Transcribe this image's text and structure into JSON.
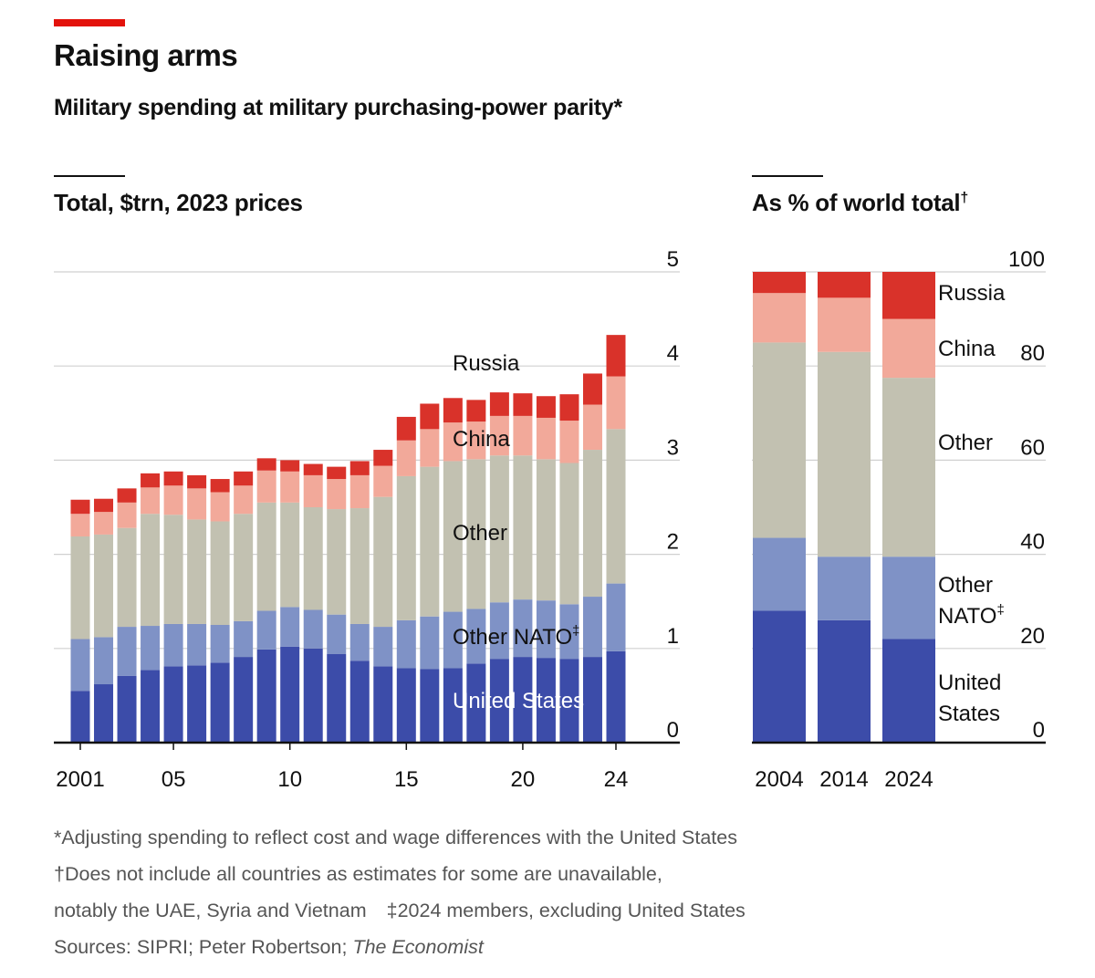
{
  "title": "Raising arms",
  "subtitle": "Military spending at military purchasing-power parity*",
  "colors": {
    "accent": "#e3120b",
    "united_states": "#3c4ca9",
    "other_nato": "#7f92c6",
    "other": "#c2c1b1",
    "china": "#f2a99a",
    "russia": "#d9322a",
    "gridline": "#d0d0d0",
    "baseline": "#111111"
  },
  "footnotes": {
    "line1": "*Adjusting spending to reflect cost and wage differences with the United States",
    "line2": "†Does not include all countries as estimates for some are unavailable,",
    "line3a": "notably the UAE, Syria and Vietnam",
    "line3b": "‡2024 members, excluding United States",
    "sources_prefix": "Sources: SIPRI; Peter Robertson; ",
    "sources_italic": "The Economist"
  },
  "chart_data": [
    {
      "type": "bar",
      "stacked": true,
      "title": "Total, $trn, 2023 prices",
      "ylim": [
        0,
        5
      ],
      "yticks": [
        0,
        1,
        2,
        3,
        4,
        5
      ],
      "grid": true,
      "x": [
        2001,
        2002,
        2003,
        2004,
        2005,
        2006,
        2007,
        2008,
        2009,
        2010,
        2011,
        2012,
        2013,
        2014,
        2015,
        2016,
        2017,
        2018,
        2019,
        2020,
        2021,
        2022,
        2023,
        2024
      ],
      "xtick_labels": [
        "2001",
        "05",
        "10",
        "15",
        "20",
        "24"
      ],
      "xtick_positions": [
        2001,
        2005,
        2010,
        2015,
        2020,
        2024
      ],
      "series": [
        {
          "name": "United States",
          "key": "united_states",
          "label": "United States",
          "values": [
            0.55,
            0.62,
            0.71,
            0.77,
            0.81,
            0.82,
            0.85,
            0.91,
            0.99,
            1.02,
            1.0,
            0.94,
            0.87,
            0.81,
            0.79,
            0.78,
            0.79,
            0.84,
            0.89,
            0.91,
            0.9,
            0.89,
            0.91,
            0.97
          ]
        },
        {
          "name": "Other NATO",
          "key": "other_nato",
          "label": "Other NATO",
          "label_mark": "‡",
          "values": [
            0.55,
            0.5,
            0.52,
            0.47,
            0.45,
            0.44,
            0.4,
            0.38,
            0.41,
            0.42,
            0.41,
            0.42,
            0.39,
            0.42,
            0.51,
            0.56,
            0.6,
            0.58,
            0.6,
            0.61,
            0.61,
            0.58,
            0.64,
            0.72
          ]
        },
        {
          "name": "Other",
          "key": "other",
          "label": "Other",
          "values": [
            1.09,
            1.09,
            1.05,
            1.19,
            1.16,
            1.11,
            1.1,
            1.14,
            1.15,
            1.11,
            1.09,
            1.12,
            1.23,
            1.38,
            1.53,
            1.59,
            1.6,
            1.59,
            1.56,
            1.53,
            1.5,
            1.5,
            1.56,
            1.64
          ]
        },
        {
          "name": "China",
          "key": "china",
          "label": "China",
          "values": [
            0.24,
            0.24,
            0.27,
            0.28,
            0.31,
            0.33,
            0.31,
            0.3,
            0.34,
            0.33,
            0.34,
            0.32,
            0.35,
            0.33,
            0.38,
            0.4,
            0.41,
            0.4,
            0.42,
            0.42,
            0.44,
            0.45,
            0.48,
            0.56
          ]
        },
        {
          "name": "Russia",
          "key": "russia",
          "label": "Russia",
          "values": [
            0.15,
            0.14,
            0.15,
            0.15,
            0.15,
            0.14,
            0.14,
            0.15,
            0.13,
            0.12,
            0.12,
            0.13,
            0.15,
            0.17,
            0.25,
            0.27,
            0.26,
            0.23,
            0.25,
            0.24,
            0.23,
            0.28,
            0.33,
            0.44
          ]
        }
      ]
    },
    {
      "type": "bar",
      "stacked": true,
      "title": "As % of world total",
      "title_mark": "†",
      "ylim": [
        0,
        100
      ],
      "yticks": [
        0,
        20,
        40,
        60,
        80,
        100
      ],
      "grid": true,
      "categories": [
        "2004",
        "2014",
        "2024"
      ],
      "series": [
        {
          "name": "United States",
          "key": "united_states",
          "label": [
            "United",
            "States"
          ],
          "values": [
            28,
            26,
            22
          ]
        },
        {
          "name": "Other NATO",
          "key": "other_nato",
          "label": [
            "Other",
            "NATO"
          ],
          "label_mark": "‡",
          "values": [
            15.5,
            13.5,
            17.5
          ]
        },
        {
          "name": "Other",
          "key": "other",
          "label": [
            "Other"
          ],
          "values": [
            41.5,
            43.5,
            38
          ]
        },
        {
          "name": "China",
          "key": "china",
          "label": [
            "China"
          ],
          "values": [
            10.5,
            11.5,
            12.5
          ]
        },
        {
          "name": "Russia",
          "key": "russia",
          "label": [
            "Russia"
          ],
          "values": [
            4.5,
            5.5,
            10
          ]
        }
      ]
    }
  ]
}
